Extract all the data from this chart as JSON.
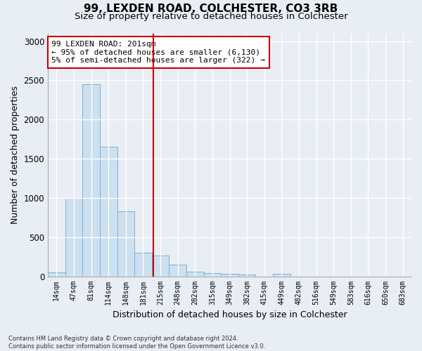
{
  "title1": "99, LEXDEN ROAD, COLCHESTER, CO3 3RB",
  "title2": "Size of property relative to detached houses in Colchester",
  "xlabel": "Distribution of detached houses by size in Colchester",
  "ylabel": "Number of detached properties",
  "categories": [
    "14sqm",
    "47sqm",
    "81sqm",
    "114sqm",
    "148sqm",
    "181sqm",
    "215sqm",
    "248sqm",
    "282sqm",
    "315sqm",
    "349sqm",
    "382sqm",
    "415sqm",
    "449sqm",
    "482sqm",
    "516sqm",
    "549sqm",
    "583sqm",
    "616sqm",
    "650sqm",
    "683sqm"
  ],
  "values": [
    50,
    1000,
    2450,
    1650,
    830,
    300,
    265,
    145,
    55,
    40,
    30,
    20,
    0,
    35,
    0,
    0,
    0,
    0,
    0,
    0,
    0
  ],
  "bar_color": "#cde0f0",
  "bar_edge_color": "#7ab0d4",
  "vline_color": "#cc0000",
  "annotation_text": "99 LEXDEN ROAD: 201sqm\n← 95% of detached houses are smaller (6,130)\n5% of semi-detached houses are larger (322) →",
  "annotation_box_color": "#ffffff",
  "annotation_box_edge": "#cc0000",
  "ylim": [
    0,
    3100
  ],
  "yticks": [
    0,
    500,
    1000,
    1500,
    2000,
    2500,
    3000
  ],
  "footnote": "Contains HM Land Registry data © Crown copyright and database right 2024.\nContains public sector information licensed under the Open Government Licence v3.0.",
  "background_color": "#e8eef4",
  "grid_color": "#ffffff",
  "title1_fontsize": 11,
  "title2_fontsize": 9.5,
  "xlabel_fontsize": 9,
  "ylabel_fontsize": 9,
  "annot_fontsize": 8
}
